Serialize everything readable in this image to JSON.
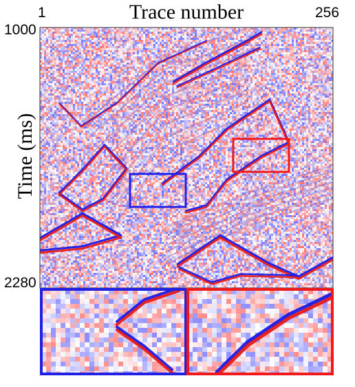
{
  "figure": {
    "title": "Trace number",
    "ylabel": "Time (ms)",
    "x_ticks": [
      "1",
      "256"
    ],
    "y_ticks": [
      "1000",
      "2280"
    ],
    "colormap": "seismic (blue-white-red)",
    "highlight_boxes": [
      {
        "name": "blue-box",
        "color": "#1f1fe6"
      },
      {
        "name": "red-box",
        "color": "#f01818"
      }
    ],
    "insets": [
      {
        "name": "blue-inset",
        "border_color": "#1f1fe6"
      },
      {
        "name": "red-inset",
        "border_color": "#f01818"
      }
    ]
  }
}
